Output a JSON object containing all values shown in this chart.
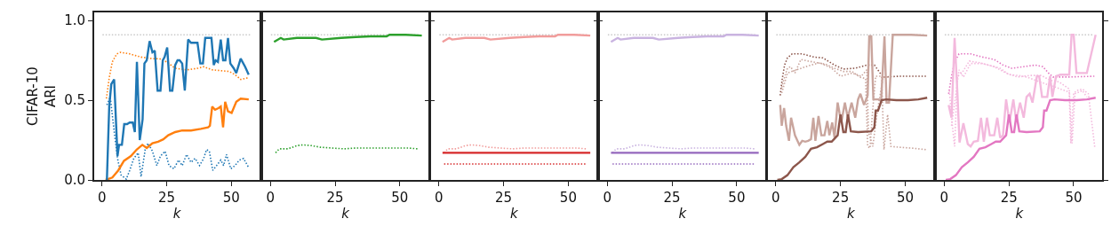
{
  "chart_data": [
    {
      "type": "line",
      "xlabel": "k",
      "ylabel": "CIFAR-10\nARI",
      "xlim": [
        -3,
        61
      ],
      "ylim": [
        0,
        1.05
      ],
      "xticks": [
        0,
        25,
        50
      ],
      "yticks": [
        {
          "value": 0,
          "label": "0.0"
        },
        {
          "value": 0.5,
          "label": "0.5"
        },
        {
          "value": 1.0,
          "label": "1.0"
        }
      ],
      "ref_lines": [
        {
          "axis": "y",
          "value": 0.91,
          "color": "#999999",
          "line_style": "dotted"
        }
      ],
      "series": [
        {
          "color": "#ff7f0e",
          "line_style": "dotted",
          "x": [
            1.7,
            2.8,
            4,
            5.7,
            7.2,
            10.7,
            15.1,
            19.5,
            22.2,
            25,
            28.3,
            32.7,
            37.1,
            39.3,
            42.6,
            45.9,
            49.2,
            51.4,
            53.6,
            56.4
          ],
          "values": [
            0.51,
            0.64,
            0.74,
            0.79,
            0.8,
            0.79,
            0.77,
            0.76,
            0.76,
            0.74,
            0.7,
            0.69,
            0.7,
            0.71,
            0.69,
            0.685,
            0.68,
            0.66,
            0.63,
            0.64
          ]
        },
        {
          "color": "#1f77b4",
          "line_style": "dotted",
          "x": [
            1.9,
            3.2,
            4.6,
            6,
            7.4,
            9.4,
            10.7,
            12.3,
            14,
            15.1,
            16.7,
            17.8,
            19.5,
            21.2,
            22.6,
            24.4,
            25.9,
            27.8,
            29.6,
            31,
            32.7,
            34.4,
            36,
            37.7,
            39.3,
            40.4,
            41.5,
            42.8,
            44.3,
            45.9,
            47,
            48.1,
            49.8,
            51.4,
            53.1,
            54.7,
            56.6
          ],
          "values": [
            0.47,
            0.52,
            0.32,
            0.135,
            0.03,
            0.005,
            0.06,
            0.135,
            0.17,
            0.02,
            0.19,
            0.23,
            0.18,
            0.09,
            0.15,
            0.18,
            0.09,
            0.07,
            0.125,
            0.09,
            0.16,
            0.11,
            0.135,
            0.09,
            0.135,
            0.19,
            0.18,
            0.06,
            0.09,
            0.125,
            0.09,
            0.16,
            0.07,
            0.09,
            0.125,
            0.135,
            0.08
          ]
        },
        {
          "color": "#ff7f0e",
          "line_style": "solid",
          "x": [
            1.4,
            4,
            6.3,
            8.5,
            11.2,
            13.4,
            15.6,
            17.3,
            19.5,
            21.7,
            23.7,
            25.6,
            28.3,
            31,
            34.4,
            38.2,
            41,
            41.7,
            42.6,
            43.7,
            45,
            45.9,
            46.8,
            47.6,
            48.7,
            50.1,
            51.9,
            53.6,
            56.7
          ],
          "values": [
            0,
            0.015,
            0.06,
            0.12,
            0.15,
            0.19,
            0.22,
            0.2,
            0.23,
            0.24,
            0.255,
            0.28,
            0.3,
            0.31,
            0.31,
            0.32,
            0.33,
            0.34,
            0.46,
            0.44,
            0.45,
            0.46,
            0.33,
            0.49,
            0.43,
            0.42,
            0.49,
            0.51,
            0.505
          ]
        },
        {
          "color": "#1f77b4",
          "line_style": "solid",
          "x": [
            1.9,
            2.8,
            3.6,
            4.7,
            6,
            6.6,
            7.7,
            8.6,
            9.7,
            10.7,
            11.9,
            12.7,
            13.5,
            14.6,
            15.7,
            16.4,
            17.3,
            18.4,
            19.5,
            20.4,
            21.5,
            22.6,
            23.5,
            24.2,
            25.2,
            26.3,
            27.2,
            28.3,
            29.2,
            30,
            31,
            32,
            33.3,
            34.4,
            35.5,
            36.9,
            38,
            39,
            39.9,
            41.3,
            42.3,
            43.2,
            43.9,
            44.8,
            45.9,
            46.8,
            47.7,
            48.7,
            49.6,
            50.9,
            51.9,
            53.6,
            55.3,
            56.7
          ],
          "values": [
            0,
            0.46,
            0.6,
            0.63,
            0.15,
            0.22,
            0.22,
            0.35,
            0.35,
            0.36,
            0.36,
            0.3,
            0.74,
            0.25,
            0.38,
            0.73,
            0.75,
            0.87,
            0.8,
            0.81,
            0.56,
            0.56,
            0.75,
            0.77,
            0.83,
            0.56,
            0.56,
            0.72,
            0.75,
            0.75,
            0.73,
            0.56,
            0.88,
            0.86,
            0.86,
            0.86,
            0.73,
            0.73,
            0.89,
            0.89,
            0.89,
            0.72,
            0.75,
            0.74,
            0.88,
            0.75,
            0.75,
            0.89,
            0.73,
            0.7,
            0.67,
            0.76,
            0.71,
            0.66
          ]
        }
      ]
    },
    {
      "type": "line",
      "xlabel": "k",
      "xlim": [
        -3,
        61
      ],
      "ylim": [
        0,
        1.05
      ],
      "xticks": [
        0,
        25,
        50
      ],
      "yticks": [
        {
          "value": 0,
          "label": null
        },
        {
          "value": 0.5,
          "label": null
        },
        {
          "value": 1.0,
          "label": null
        }
      ],
      "tick_labels": "x",
      "ref_lines": [
        {
          "axis": "y",
          "value": 0.91,
          "color": "#999999",
          "line_style": "dotted"
        }
      ],
      "series": [
        {
          "color": "#2ca02c",
          "line_style": "dotted",
          "x": [
            2,
            3.4,
            6.8,
            10.2,
            12.5,
            15.9,
            19.3,
            23.9,
            28.4,
            33,
            38.6,
            44.3,
            53.4,
            56.8
          ],
          "values": [
            0.17,
            0.195,
            0.195,
            0.215,
            0.22,
            0.215,
            0.205,
            0.2,
            0.195,
            0.2,
            0.2,
            0.2,
            0.2,
            0.195
          ]
        },
        {
          "color": "#2ca02c",
          "line_style": "solid",
          "x": [
            1.4,
            4,
            5.1,
            10.2,
            14.8,
            17.6,
            19.9,
            27.3,
            33,
            38.6,
            44.9,
            46,
            52.3,
            58.5
          ],
          "values": [
            0.865,
            0.89,
            0.88,
            0.89,
            0.89,
            0.89,
            0.88,
            0.89,
            0.896,
            0.9,
            0.9,
            0.91,
            0.91,
            0.905
          ]
        }
      ]
    },
    {
      "type": "line",
      "xlabel": "k",
      "xlim": [
        -3,
        61
      ],
      "ylim": [
        0,
        1.05
      ],
      "xticks": [
        0,
        25,
        50
      ],
      "yticks": [
        {
          "value": 0,
          "label": null
        },
        {
          "value": 0.5,
          "label": null
        },
        {
          "value": 1.0,
          "label": null
        }
      ],
      "tick_labels": "x",
      "ref_lines": [
        {
          "axis": "y",
          "value": 0.91,
          "color": "#999999",
          "line_style": "dotted"
        }
      ],
      "series": [
        {
          "color": "#f19c9b",
          "line_style": "dotted",
          "x": [
            2,
            3.4,
            6.8,
            10.2,
            12.5,
            15.9,
            19.3,
            23.9,
            28.4,
            33,
            38.6,
            44.3,
            53.4,
            56.8
          ],
          "values": [
            0.17,
            0.195,
            0.195,
            0.215,
            0.22,
            0.215,
            0.205,
            0.2,
            0.195,
            0.2,
            0.2,
            0.2,
            0.2,
            0.195
          ]
        },
        {
          "color": "#f19c9b",
          "line_style": "solid",
          "x": [
            1.4,
            4,
            5.1,
            10.2,
            14.8,
            17.6,
            19.9,
            27.3,
            33,
            38.6,
            44.9,
            46,
            52.3,
            58.5
          ],
          "values": [
            0.865,
            0.89,
            0.88,
            0.89,
            0.89,
            0.89,
            0.88,
            0.89,
            0.896,
            0.9,
            0.9,
            0.91,
            0.91,
            0.905
          ]
        },
        {
          "color": "#d62728",
          "line_style": "dotted",
          "x": [
            2,
            56.8
          ],
          "values": [
            0.1,
            0.1
          ]
        },
        {
          "color": "#d62728",
          "line_style": "solid",
          "x": [
            1.4,
            58.5
          ],
          "values": [
            0.17,
            0.17
          ]
        }
      ]
    },
    {
      "type": "line",
      "xlabel": "k",
      "xlim": [
        -3,
        61
      ],
      "ylim": [
        0,
        1.05
      ],
      "xticks": [
        0,
        25,
        50
      ],
      "yticks": [
        {
          "value": 0,
          "label": null
        },
        {
          "value": 0.5,
          "label": null
        },
        {
          "value": 1.0,
          "label": null
        }
      ],
      "tick_labels": "x",
      "ref_lines": [
        {
          "axis": "y",
          "value": 0.91,
          "color": "#999999",
          "line_style": "dotted"
        }
      ],
      "series": [
        {
          "color": "#c9b3e0",
          "line_style": "dotted",
          "x": [
            2,
            3.4,
            6.8,
            10.2,
            12.5,
            15.9,
            19.3,
            23.9,
            28.4,
            33,
            38.6,
            44.3,
            53.4,
            56.8
          ],
          "values": [
            0.17,
            0.195,
            0.195,
            0.215,
            0.22,
            0.215,
            0.205,
            0.2,
            0.195,
            0.2,
            0.2,
            0.2,
            0.2,
            0.195
          ]
        },
        {
          "color": "#c9b3e0",
          "line_style": "solid",
          "x": [
            1.4,
            4,
            5.1,
            10.2,
            14.8,
            17.6,
            19.9,
            27.3,
            33,
            38.6,
            44.9,
            46,
            52.3,
            58.5
          ],
          "values": [
            0.865,
            0.89,
            0.88,
            0.89,
            0.89,
            0.89,
            0.88,
            0.89,
            0.896,
            0.9,
            0.9,
            0.91,
            0.91,
            0.905
          ]
        },
        {
          "color": "#9467bd",
          "line_style": "dotted",
          "x": [
            2,
            56.8
          ],
          "values": [
            0.1,
            0.1
          ]
        },
        {
          "color": "#9467bd",
          "line_style": "solid",
          "x": [
            1.4,
            58.5
          ],
          "values": [
            0.17,
            0.17
          ]
        }
      ]
    },
    {
      "type": "line",
      "xlabel": "k",
      "xlim": [
        -3,
        61
      ],
      "ylim": [
        0,
        1.05
      ],
      "xticks": [
        0,
        25,
        50
      ],
      "yticks": [
        {
          "value": 0,
          "label": null
        },
        {
          "value": 0.5,
          "label": null
        },
        {
          "value": 1.0,
          "label": null
        }
      ],
      "tick_labels": "x",
      "ref_lines": [
        {
          "axis": "y",
          "value": 0.91,
          "color": "#999999",
          "line_style": "dotted"
        }
      ],
      "series": [
        {
          "color": "#8c564b",
          "line_style": "dotted",
          "x": [
            1.7,
            2.5,
            3.4,
            4.5,
            6.3,
            10.2,
            14.8,
            18.2,
            22.7,
            26.1,
            30.7,
            35.2,
            38.1,
            40.3,
            42,
            47.7,
            58
          ],
          "values": [
            0.53,
            0.635,
            0.72,
            0.765,
            0.79,
            0.79,
            0.77,
            0.765,
            0.72,
            0.695,
            0.7,
            0.72,
            0.72,
            0.67,
            0.645,
            0.65,
            0.65
          ]
        },
        {
          "color": "#c9a59d",
          "line_style": "dotted",
          "x": [
            2.3,
            3.4,
            4.5,
            5.7,
            7.4,
            9.7,
            12.5,
            15.9,
            19.3,
            22.7,
            26.1,
            29.5,
            32.4,
            34.7,
            35.5,
            36.4,
            37.3,
            38.6,
            40.9,
            41.8,
            43.2,
            44.5,
            47.7,
            52.3,
            58
          ],
          "values": [
            0.58,
            0.645,
            0.7,
            0.71,
            0.67,
            0.755,
            0.745,
            0.735,
            0.725,
            0.7,
            0.68,
            0.68,
            0.645,
            0.635,
            0.21,
            0.2,
            0.41,
            0.65,
            0.65,
            0.19,
            0.41,
            0.21,
            0.205,
            0.2,
            0.19
          ]
        },
        {
          "color": "#c9a59d",
          "line_style": "dotted",
          "x": [
            2.3,
            4.5,
            8,
            12.5,
            17,
            21.6,
            25,
            29.5,
            33,
            35.2,
            35.8,
            37.5,
            38.6,
            39.8,
            41.5,
            43.2
          ],
          "values": [
            0.545,
            0.67,
            0.69,
            0.715,
            0.735,
            0.7,
            0.65,
            0.67,
            0.65,
            0.69,
            0.3,
            0.21,
            0.355,
            0.485,
            0.645,
            0.645
          ]
        },
        {
          "color": "#c9a59d",
          "line_style": "solid",
          "x": [
            1.7,
            2.3,
            3.2,
            4,
            5.1,
            5.9,
            7.4,
            9.1,
            10.2,
            11.4,
            12.5,
            13.6,
            14.5,
            15.3,
            16.5,
            17.6,
            18.8,
            19.9,
            20.7,
            21.8,
            22.7,
            23.9,
            25.3,
            26.7,
            27.8,
            29.3,
            30.7,
            31.8,
            32.7,
            34.1,
            35.5,
            36.1,
            36.9,
            37.7,
            39.8,
            40.7,
            42,
            42.8,
            43.75,
            45.2,
            52.3,
            58.5
          ],
          "values": [
            0.47,
            0.34,
            0.45,
            0.34,
            0.245,
            0.39,
            0.28,
            0.22,
            0.245,
            0.24,
            0.245,
            0.255,
            0.39,
            0.245,
            0.4,
            0.28,
            0.28,
            0.37,
            0.28,
            0.36,
            0.265,
            0.485,
            0.36,
            0.485,
            0.39,
            0.485,
            0.39,
            0.505,
            0.54,
            0.47,
            0.53,
            0.9,
            0.9,
            0.505,
            0.505,
            0.495,
            0.9,
            0.485,
            0.485,
            0.91,
            0.91,
            0.905
          ]
        },
        {
          "color": "#8c564b",
          "line_style": "solid",
          "x": [
            0.6,
            2.3,
            4.5,
            6.8,
            9.1,
            11.4,
            13.6,
            15.9,
            18.2,
            19.9,
            21.6,
            23.9,
            25,
            26.1,
            27,
            27.9,
            29,
            31.8,
            36.9,
            38.1,
            38.6,
            39.5,
            40.9,
            42.6,
            46.6,
            51.1,
            55.1,
            58.5
          ],
          "values": [
            0,
            0.005,
            0.03,
            0.08,
            0.11,
            0.145,
            0.195,
            0.205,
            0.225,
            0.24,
            0.24,
            0.28,
            0.41,
            0.3,
            0.3,
            0.41,
            0.305,
            0.3,
            0.305,
            0.33,
            0.435,
            0.435,
            0.5,
            0.505,
            0.5,
            0.5,
            0.505,
            0.515
          ]
        }
      ]
    },
    {
      "type": "line",
      "xlabel": "k",
      "xlim": [
        -3,
        61
      ],
      "ylim": [
        0,
        1.05
      ],
      "xticks": [
        0,
        25,
        50
      ],
      "yticks": [
        {
          "value": 0,
          "label": null
        },
        {
          "value": 0.5,
          "label": null
        },
        {
          "value": 1.0,
          "label": null
        }
      ],
      "tick_labels": "x",
      "ref_lines": [
        {
          "axis": "y",
          "value": 0.91,
          "color": "#999999",
          "line_style": "dotted"
        }
      ],
      "series": [
        {
          "color": "#e377c2",
          "line_style": "dotted",
          "x": [
            1.7,
            2.8,
            4,
            5.7,
            10.2,
            14.8,
            19.3,
            22.7,
            26.1,
            30.7,
            35.2,
            38.1,
            40.3,
            42,
            47.7,
            58
          ],
          "values": [
            0.54,
            0.65,
            0.74,
            0.79,
            0.79,
            0.77,
            0.755,
            0.72,
            0.7,
            0.71,
            0.72,
            0.71,
            0.67,
            0.645,
            0.645,
            0.65
          ]
        },
        {
          "color": "#f3b9dd",
          "line_style": "dotted",
          "x": [
            2,
            2.8,
            4,
            5.1,
            6.8,
            9.7,
            13.6,
            17,
            21.6,
            25,
            28.4,
            31.8,
            35.2,
            38.6,
            43.2,
            46.6,
            48.3,
            48.9,
            50,
            51.1,
            53.4,
            55.7,
            56.8,
            58.2
          ],
          "values": [
            0.56,
            0.39,
            0.21,
            0.65,
            0.67,
            0.745,
            0.735,
            0.72,
            0.7,
            0.66,
            0.655,
            0.645,
            0.625,
            0.605,
            0.58,
            0.56,
            0.55,
            0.23,
            0.54,
            0.56,
            0.57,
            0.54,
            0.39,
            0.2
          ]
        },
        {
          "color": "#f3b9dd",
          "line_style": "dotted",
          "x": [
            2.8,
            4.5,
            5.7,
            7.4,
            10.2,
            14.8,
            19.3,
            23.9,
            28.4,
            33,
            37.5,
            40.9,
            44.3,
            48.3,
            49.4,
            50.5,
            53.4,
            55.1
          ],
          "values": [
            0.34,
            0.54,
            0.69,
            0.645,
            0.73,
            0.73,
            0.71,
            0.67,
            0.645,
            0.655,
            0.655,
            0.625,
            0.615,
            0.57,
            0.23,
            0.54,
            0.56,
            0.52
          ]
        },
        {
          "color": "#f3b9dd",
          "line_style": "solid",
          "x": [
            1.7,
            2.8,
            4,
            5.1,
            5.9,
            7.4,
            9.1,
            10.2,
            11.4,
            13,
            14.2,
            15.3,
            16.5,
            17.6,
            19.3,
            20.5,
            21.6,
            22.7,
            23.9,
            25.2,
            26.7,
            27.8,
            29.3,
            30.7,
            31.8,
            33,
            34.1,
            35.8,
            36.7,
            37.8,
            39.8,
            40.9,
            41.8,
            43.2,
            44.9,
            46.6,
            48.3,
            49.2,
            50,
            51.1,
            55.1,
            58.5
          ],
          "values": [
            0.47,
            0.39,
            0.89,
            0.54,
            0.235,
            0.355,
            0.225,
            0.21,
            0.24,
            0.245,
            0.39,
            0.24,
            0.39,
            0.28,
            0.28,
            0.39,
            0.265,
            0.28,
            0.505,
            0.36,
            0.505,
            0.37,
            0.485,
            0.39,
            0.52,
            0.54,
            0.485,
            0.65,
            0.65,
            0.52,
            0.52,
            0.65,
            0.52,
            0.65,
            0.66,
            0.66,
            0.66,
            0.91,
            0.91,
            0.67,
            0.67,
            0.91
          ]
        },
        {
          "color": "#e377c2",
          "line_style": "solid",
          "x": [
            0.6,
            2.3,
            4.5,
            6.8,
            9.1,
            11.4,
            13.6,
            15.9,
            18.2,
            19.9,
            21.6,
            23.9,
            25,
            26.1,
            27,
            27.9,
            29,
            31.8,
            36.9,
            38.1,
            38.6,
            39.5,
            40.9,
            42.6,
            46.6,
            51.1,
            55.1,
            58.5
          ],
          "values": [
            0,
            0.005,
            0.03,
            0.08,
            0.11,
            0.145,
            0.195,
            0.205,
            0.225,
            0.24,
            0.24,
            0.28,
            0.41,
            0.3,
            0.3,
            0.41,
            0.305,
            0.3,
            0.305,
            0.33,
            0.435,
            0.435,
            0.5,
            0.505,
            0.5,
            0.5,
            0.505,
            0.515
          ]
        }
      ]
    }
  ]
}
